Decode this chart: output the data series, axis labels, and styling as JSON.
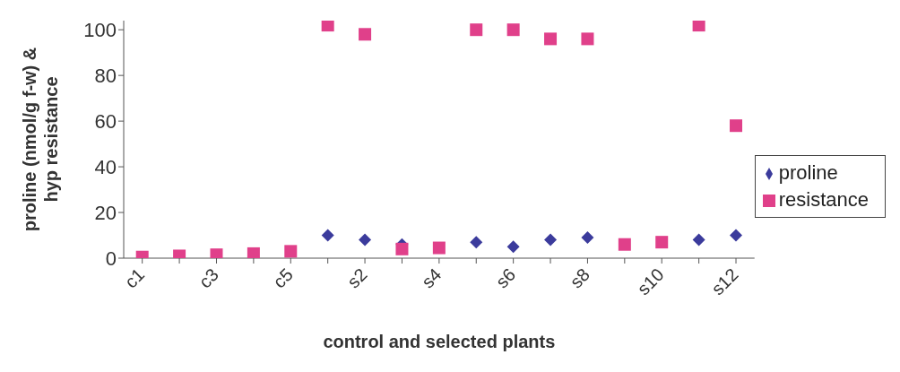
{
  "chart_data": {
    "type": "scatter",
    "xlabel": "control and selected plants",
    "ylabel": "proline (nmol/g f-w) & hyp resistance",
    "categories": [
      "c1",
      null,
      "c3",
      null,
      "c5",
      null,
      "s2",
      null,
      "s4",
      null,
      "s6",
      null,
      "s8",
      null,
      "s10",
      null,
      "s12"
    ],
    "series": [
      {
        "name": "proline",
        "color": "#3b3b9c",
        "marker": "diamond",
        "values": [
          null,
          null,
          null,
          null,
          null,
          10,
          8,
          6,
          null,
          7,
          5,
          8,
          9,
          null,
          null,
          8,
          10
        ]
      },
      {
        "name": "resistance",
        "color": "#e0408a",
        "marker": "square",
        "values": [
          0.5,
          1,
          1.5,
          2,
          3,
          102,
          98,
          4,
          4.5,
          100,
          100,
          96,
          96,
          6,
          7,
          102,
          58
        ]
      }
    ],
    "ylim": [
      0,
      104
    ],
    "yticks": [
      0,
      20,
      40,
      60,
      80,
      100
    ],
    "grid": false,
    "legend": "right"
  }
}
